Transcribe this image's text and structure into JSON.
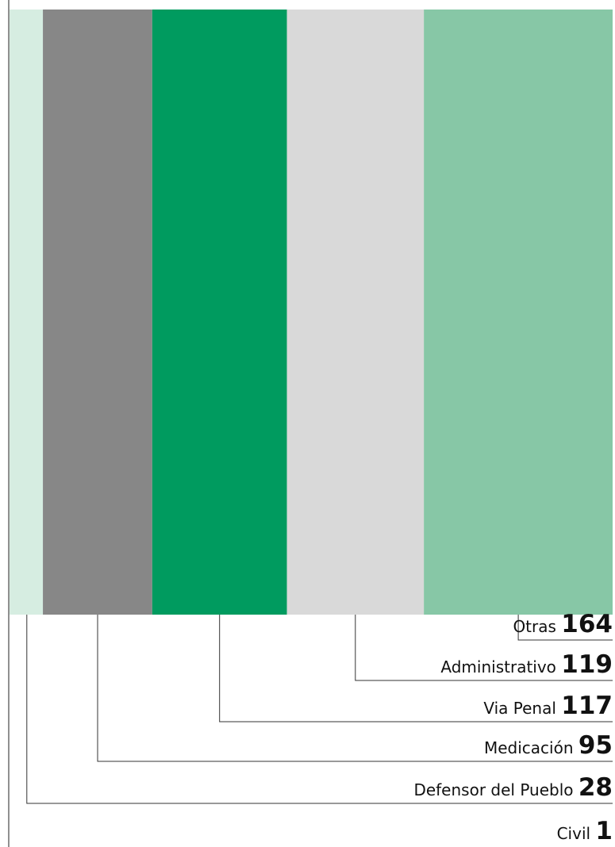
{
  "chart_data": {
    "type": "bar",
    "orientation": "stacked-horizontal-full-height",
    "categories": [
      "Civil",
      "Defensor del Pueblo",
      "Medicación",
      "Via Penal",
      "Administrativo",
      "Otras"
    ],
    "values": [
      1,
      28,
      95,
      117,
      119,
      164
    ],
    "colors": [
      "#d6ede1",
      "#d6ede1",
      "#878787",
      "#009b5f",
      "#d9d9d9",
      "#87c7a6"
    ],
    "legend": "bottom-right",
    "labels_order": [
      "Otras",
      "Administrativo",
      "Via Penal",
      "Medicación",
      "Defensor del Pueblo",
      "Civil"
    ]
  }
}
